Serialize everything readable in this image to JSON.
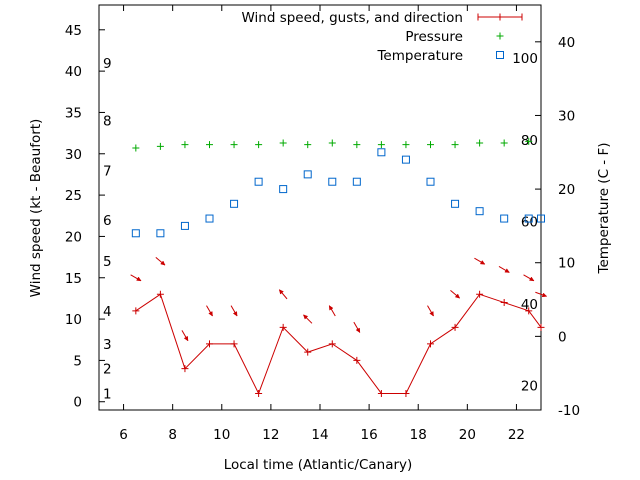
{
  "chart_data": {
    "type": "line",
    "xlabel": "Local time (Atlantic/Canary)",
    "ylabel_left": "Wind speed (kt - Beaufort)",
    "ylabel_right": "Temperature (C - F)",
    "xlim": [
      5,
      23
    ],
    "ylim_left": [
      -1,
      48
    ],
    "ylim_right": [
      -10,
      45
    ],
    "x_ticks": [
      6,
      8,
      10,
      12,
      14,
      16,
      18,
      20,
      22
    ],
    "y_ticks_left": [
      0,
      5,
      10,
      15,
      20,
      25,
      30,
      35,
      40,
      45
    ],
    "y_ticks_right": [
      -10,
      0,
      10,
      20,
      30,
      40
    ],
    "beaufort_labels": [
      {
        "label": "1",
        "kt": 1
      },
      {
        "label": "2",
        "kt": 4
      },
      {
        "label": "3",
        "kt": 7
      },
      {
        "label": "4",
        "kt": 11
      },
      {
        "label": "5",
        "kt": 17
      },
      {
        "label": "6",
        "kt": 22
      },
      {
        "label": "7",
        "kt": 28
      },
      {
        "label": "8",
        "kt": 34
      },
      {
        "label": "9",
        "kt": 41
      }
    ],
    "fahrenheit_labels": [
      {
        "label": "20",
        "celsius": -6.7
      },
      {
        "label": "40",
        "celsius": 4.4
      },
      {
        "label": "60",
        "celsius": 15.6
      },
      {
        "label": "80",
        "celsius": 26.7
      },
      {
        "label": "100",
        "celsius": 37.8
      }
    ],
    "legend_position": "top-right",
    "series": [
      {
        "name": "Wind speed, gusts, and direction",
        "axis": "left",
        "style": "line-plus",
        "color": "#cc0000",
        "x": [
          6.5,
          7.5,
          8.5,
          9.5,
          10.5,
          11.5,
          12.5,
          13.5,
          14.5,
          15.5,
          16.5,
          17.5,
          18.5,
          19.5,
          20.5,
          21.5,
          22.5,
          23
        ],
        "y": [
          11,
          13,
          4,
          7,
          7,
          1,
          9,
          6,
          7,
          5,
          1,
          1,
          7,
          9,
          13,
          12,
          11,
          9
        ]
      },
      {
        "name": "Pressure",
        "axis": "left",
        "style": "plus",
        "color": "#00aa00",
        "x": [
          6.5,
          7.5,
          8.5,
          9.5,
          10.5,
          11.5,
          12.5,
          13.5,
          14.5,
          15.5,
          16.5,
          17.5,
          18.5,
          19.5,
          20.5,
          21.5,
          22.5
        ],
        "y": [
          30.7,
          30.9,
          31.1,
          31.1,
          31.1,
          31.1,
          31.3,
          31.1,
          31.3,
          31.1,
          31.1,
          31.1,
          31.1,
          31.1,
          31.3,
          31.3,
          31.5
        ]
      },
      {
        "name": "Temperature",
        "axis": "right",
        "style": "square",
        "color": "#0066cc",
        "x": [
          6.5,
          7.5,
          8.5,
          9.5,
          10.5,
          11.5,
          12.5,
          13.5,
          14.5,
          15.5,
          16.5,
          17.5,
          18.5,
          19.5,
          20.5,
          21.5,
          22.5,
          23
        ],
        "y": [
          14,
          14,
          15,
          16,
          18,
          21,
          20,
          22,
          21,
          21,
          25,
          24,
          21,
          18,
          17,
          16,
          16,
          16
        ]
      }
    ],
    "wind_direction_arrows": {
      "color": "#cc0000",
      "x": [
        6.5,
        7.5,
        8.5,
        9.5,
        10.5,
        12.5,
        13.5,
        14.5,
        15.5,
        18.5,
        19.5,
        20.5,
        21.5,
        22.5,
        23
      ],
      "y": [
        15,
        17,
        8,
        11,
        11,
        13,
        10,
        11,
        9,
        11,
        13,
        17,
        16,
        15,
        13
      ],
      "dir_deg": [
        300,
        310,
        330,
        330,
        330,
        140,
        135,
        150,
        330,
        330,
        310,
        300,
        300,
        300,
        290
      ]
    }
  }
}
